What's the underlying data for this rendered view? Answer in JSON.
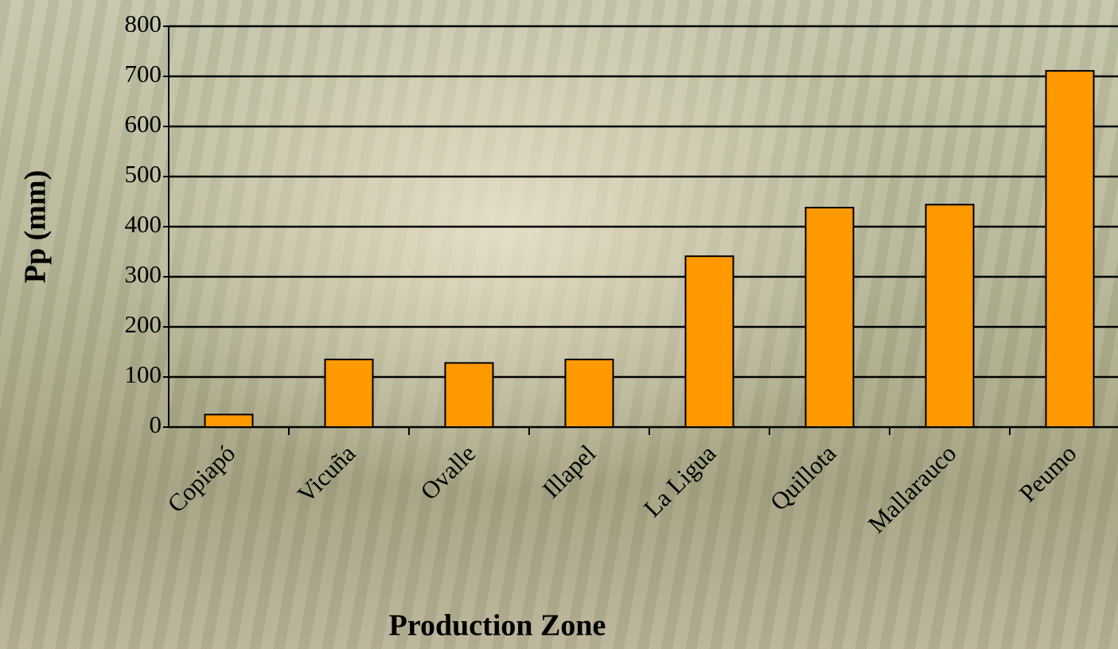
{
  "chart_data": {
    "type": "bar",
    "x_label": "Production Zone",
    "y_label": "Pp (mm)",
    "categories": [
      "Copiapó",
      "Vicuña",
      "Ovalle",
      "Illapel",
      "La Ligua",
      "Quillota",
      "Mallarauco",
      "Peumo"
    ],
    "values": [
      25,
      135,
      128,
      135,
      341,
      438,
      444,
      711
    ],
    "color": "#ff9900",
    "ylim": [
      0,
      800
    ],
    "yticks": [
      0,
      100,
      200,
      300,
      400,
      500,
      600,
      700,
      800
    ],
    "grid": true
  }
}
